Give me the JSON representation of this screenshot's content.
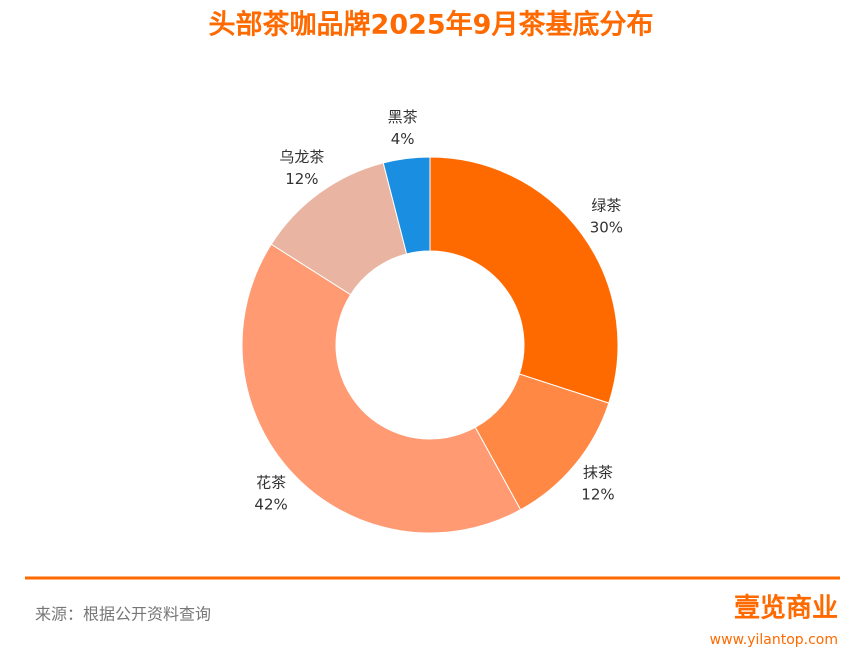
{
  "chart_data": {
    "type": "donut",
    "title": "头部茶咖品牌2025年9月茶基底分布",
    "categories": [
      "绿茶",
      "抹茶",
      "花茶",
      "乌龙茶",
      "黑茶"
    ],
    "values": [
      30,
      12,
      42,
      12,
      4
    ],
    "value_labels": [
      "30%",
      "12%",
      "42%",
      "12%",
      "4%"
    ],
    "colors": [
      "#ff6a00",
      "#ff8844",
      "#ff9a72",
      "#e9b5a2",
      "#1a8ee0"
    ]
  },
  "footer": {
    "source": "来源：根据公开资料查询",
    "logo": "壹览商业",
    "url": "www.yilantop.com"
  }
}
